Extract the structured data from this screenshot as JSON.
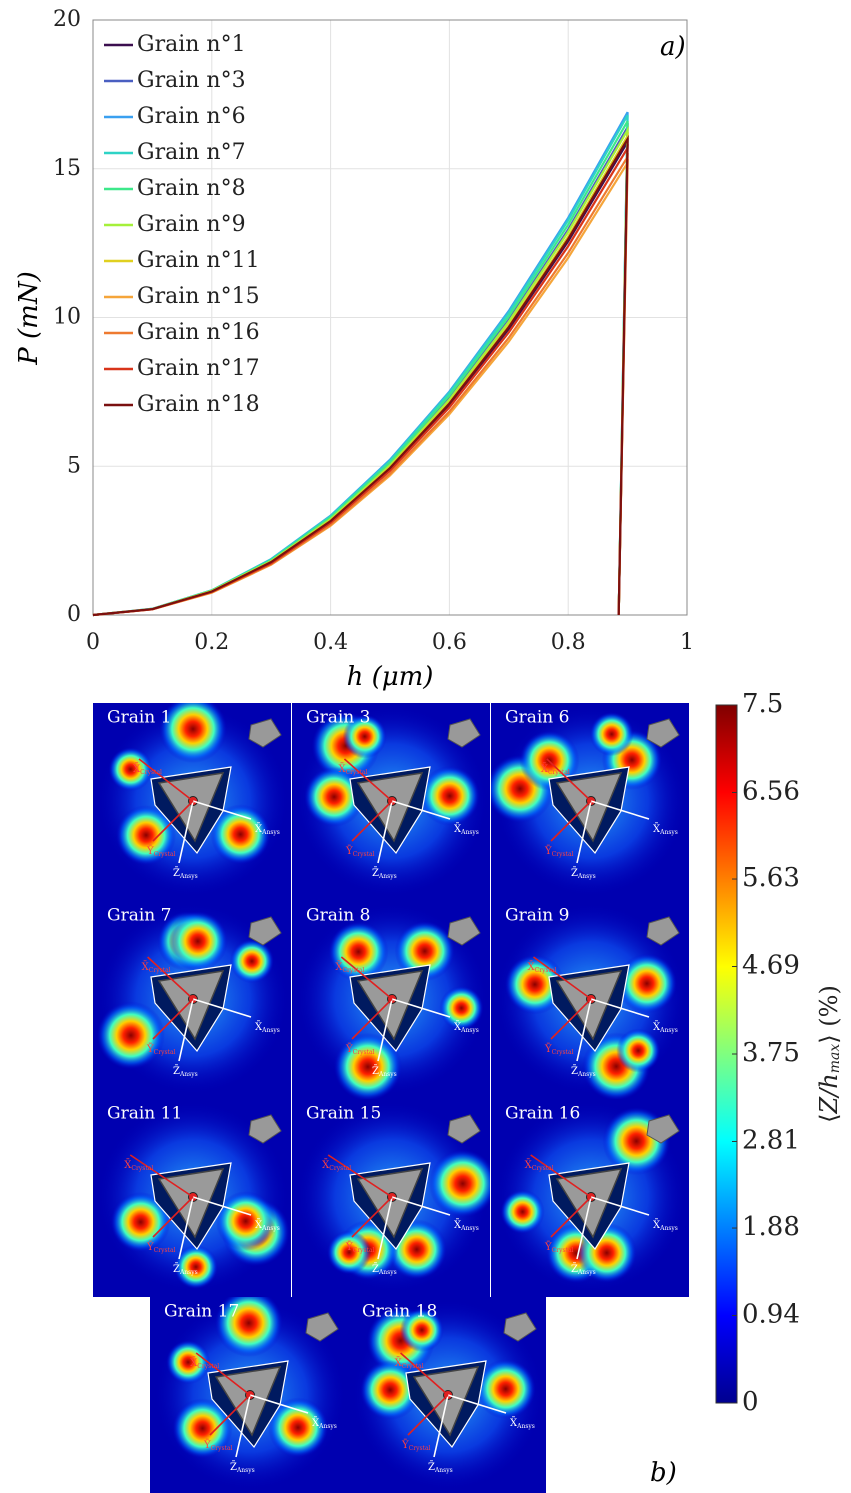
{
  "chart_data": [
    {
      "type": "line",
      "xlabel": "h (μm)",
      "ylabel": "P (mN)",
      "annotation": "a)",
      "x": [
        0,
        0.1,
        0.2,
        0.3,
        0.4,
        0.5,
        0.6,
        0.7,
        0.8,
        0.9,
        0.885
      ],
      "xlim": [
        0,
        1
      ],
      "xticks": [
        0,
        0.2,
        0.4,
        0.6,
        0.8,
        1
      ],
      "ylim": [
        0,
        20
      ],
      "yticks": [
        0,
        5,
        10,
        15,
        20
      ],
      "grid": true,
      "legend": "upper-left",
      "series": [
        {
          "name": "Grain n°1",
          "color": "#3b0f4f",
          "values": [
            0,
            0.2,
            0.79,
            1.77,
            3.14,
            4.91,
            7.07,
            9.62,
            12.56,
            15.9,
            0
          ]
        },
        {
          "name": "Grain n°3",
          "color": "#4a5fc1",
          "values": [
            0,
            0.2,
            0.81,
            1.82,
            3.24,
            5.06,
            7.29,
            9.92,
            12.96,
            16.4,
            0
          ]
        },
        {
          "name": "Grain n°6",
          "color": "#3aa0f0",
          "values": [
            0,
            0.21,
            0.83,
            1.88,
            3.34,
            5.22,
            7.51,
            10.22,
            13.35,
            16.9,
            0
          ]
        },
        {
          "name": "Grain n°7",
          "color": "#2ed3c6",
          "values": [
            0,
            0.21,
            0.83,
            1.87,
            3.32,
            5.18,
            7.47,
            10.16,
            13.27,
            16.8,
            0
          ]
        },
        {
          "name": "Grain n°8",
          "color": "#3de88a",
          "values": [
            0,
            0.2,
            0.82,
            1.84,
            3.28,
            5.12,
            7.38,
            10.04,
            13.12,
            16.6,
            0
          ]
        },
        {
          "name": "Grain n°9",
          "color": "#a5f03a",
          "values": [
            0,
            0.2,
            0.81,
            1.81,
            3.22,
            5.03,
            7.24,
            9.86,
            12.88,
            16.3,
            0
          ]
        },
        {
          "name": "Grain n°11",
          "color": "#e0d020",
          "values": [
            0,
            0.2,
            0.8,
            1.79,
            3.18,
            4.97,
            7.15,
            9.74,
            12.72,
            16.1,
            0
          ]
        },
        {
          "name": "Grain n°15",
          "color": "#f5a53a",
          "values": [
            0,
            0.19,
            0.75,
            1.69,
            3,
            4.69,
            6.75,
            9.19,
            12.01,
            15.2,
            0
          ]
        },
        {
          "name": "Grain n°16",
          "color": "#ee7a30",
          "values": [
            0,
            0.19,
            0.76,
            1.71,
            3.04,
            4.75,
            6.84,
            9.32,
            12.17,
            15.4,
            0
          ]
        },
        {
          "name": "Grain n°17",
          "color": "#d8341a",
          "values": [
            0,
            0.19,
            0.78,
            1.74,
            3.1,
            4.85,
            6.98,
            9.5,
            12.4,
            15.7,
            0
          ]
        },
        {
          "name": "Grain n°18",
          "color": "#7a1010",
          "values": [
            0,
            0.2,
            0.79,
            1.78,
            3.16,
            4.94,
            7.11,
            9.68,
            12.64,
            16,
            0
          ]
        }
      ]
    },
    {
      "type": "heatmap",
      "annotation": "b)",
      "panels": [
        "Grain 1",
        "Grain 3",
        "Grain 6",
        "Grain 7",
        "Grain 8",
        "Grain 9",
        "Grain 11",
        "Grain 15",
        "Grain 16",
        "Grain 17",
        "Grain 18"
      ],
      "frame_labels": [
        {
          "symbol": "X̄",
          "sub": "Ansys"
        },
        {
          "symbol": "Z̄",
          "sub": "Ansys"
        },
        {
          "symbol": "X̄",
          "sub": "Crystal"
        },
        {
          "symbol": "Ȳ",
          "sub": "Crystal"
        }
      ],
      "colorbar": {
        "label": [
          "⟨",
          "Z",
          "/h",
          "max",
          "⟩ (%)"
        ],
        "clim": [
          0,
          7.5
        ],
        "ticks": [
          0,
          0.94,
          1.88,
          2.81,
          3.75,
          4.69,
          5.63,
          6.56,
          7.5
        ]
      }
    }
  ]
}
